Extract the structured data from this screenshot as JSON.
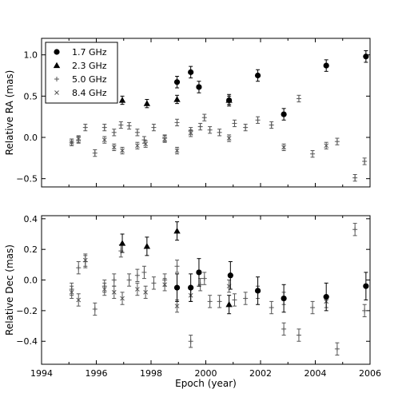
{
  "chart_data": [
    {
      "type": "scatter",
      "panel": "top",
      "xlabel": "",
      "ylabel": "Relative RA (mas)",
      "xlim": [
        1994,
        2006
      ],
      "ylim": [
        -0.6,
        1.2
      ],
      "x_ticks": [
        1994,
        1996,
        1998,
        2000,
        2002,
        2004,
        2006
      ],
      "x_tick_labels_shown": false,
      "y_ticks": [
        -0.5,
        0.0,
        0.5,
        1.0
      ],
      "y_tick_labels": [
        "−0.5",
        "0.0",
        "0.5",
        "1.0"
      ],
      "grid": false,
      "legend": {
        "placement": "top-left"
      },
      "series": [
        {
          "name": "1.7 GHz",
          "marker": "circle",
          "points": [
            {
              "x": 1998.95,
              "y": 0.67,
              "err": 0.07
            },
            {
              "x": 1999.45,
              "y": 0.79,
              "err": 0.07
            },
            {
              "x": 1999.75,
              "y": 0.61,
              "err": 0.07
            },
            {
              "x": 2000.85,
              "y": 0.45,
              "err": 0.07
            },
            {
              "x": 2001.9,
              "y": 0.75,
              "err": 0.07
            },
            {
              "x": 2002.85,
              "y": 0.28,
              "err": 0.07
            },
            {
              "x": 2004.4,
              "y": 0.87,
              "err": 0.07
            },
            {
              "x": 2005.85,
              "y": 0.98,
              "err": 0.07
            }
          ]
        },
        {
          "name": "2.3 GHz",
          "marker": "triangle",
          "points": [
            {
              "x": 1996.95,
              "y": 0.45,
              "err": 0.05
            },
            {
              "x": 1997.85,
              "y": 0.41,
              "err": 0.05
            },
            {
              "x": 1998.95,
              "y": 0.46,
              "err": 0.05
            },
            {
              "x": 2000.85,
              "y": 0.45,
              "err": 0.05
            }
          ]
        },
        {
          "name": "5.0 GHz",
          "marker": "plus",
          "points": [
            {
              "x": 1995.1,
              "y": -0.06
            },
            {
              "x": 1995.35,
              "y": -0.03
            },
            {
              "x": 1995.6,
              "y": 0.12
            },
            {
              "x": 1995.95,
              "y": -0.19
            },
            {
              "x": 1996.3,
              "y": 0.12
            },
            {
              "x": 1996.65,
              "y": 0.06
            },
            {
              "x": 1996.9,
              "y": 0.15
            },
            {
              "x": 1997.2,
              "y": 0.14
            },
            {
              "x": 1997.5,
              "y": 0.06
            },
            {
              "x": 1997.75,
              "y": -0.03
            },
            {
              "x": 1998.1,
              "y": 0.12
            },
            {
              "x": 1998.5,
              "y": -0.01
            },
            {
              "x": 1998.95,
              "y": 0.18
            },
            {
              "x": 1999.45,
              "y": 0.08
            },
            {
              "x": 1999.8,
              "y": 0.13
            },
            {
              "x": 1999.95,
              "y": 0.24
            },
            {
              "x": 2000.15,
              "y": 0.09
            },
            {
              "x": 2000.5,
              "y": 0.06
            },
            {
              "x": 2001.05,
              "y": 0.17
            },
            {
              "x": 2001.45,
              "y": 0.12
            },
            {
              "x": 2001.9,
              "y": 0.21
            },
            {
              "x": 2002.4,
              "y": 0.15
            },
            {
              "x": 2003.4,
              "y": 0.47
            },
            {
              "x": 2003.9,
              "y": -0.2
            },
            {
              "x": 2004.8,
              "y": -0.05
            },
            {
              "x": 2005.45,
              "y": -0.49
            },
            {
              "x": 2005.8,
              "y": -0.29
            }
          ]
        },
        {
          "name": "8.4 GHz",
          "marker": "cross",
          "points": [
            {
              "x": 1995.1,
              "y": -0.06
            },
            {
              "x": 1995.35,
              "y": -0.02
            },
            {
              "x": 1996.3,
              "y": -0.03
            },
            {
              "x": 1996.65,
              "y": -0.12
            },
            {
              "x": 1996.95,
              "y": -0.16
            },
            {
              "x": 1997.5,
              "y": -0.1
            },
            {
              "x": 1997.8,
              "y": -0.08
            },
            {
              "x": 1998.5,
              "y": -0.02
            },
            {
              "x": 1998.95,
              "y": -0.16
            },
            {
              "x": 1999.45,
              "y": 0.05
            },
            {
              "x": 2000.85,
              "y": -0.01
            },
            {
              "x": 2002.85,
              "y": -0.12
            },
            {
              "x": 2004.4,
              "y": -0.1
            }
          ]
        }
      ]
    },
    {
      "type": "scatter",
      "panel": "bottom",
      "xlabel": "Epoch (year)",
      "ylabel": "Relative Dec (mas)",
      "xlim": [
        1994,
        2006
      ],
      "ylim": [
        -0.55,
        0.42
      ],
      "x_ticks": [
        1994,
        1996,
        1998,
        2000,
        2002,
        2004,
        2006
      ],
      "x_tick_labels": [
        "1994",
        "1996",
        "1998",
        "2000",
        "2002",
        "2004",
        "2006"
      ],
      "y_ticks": [
        -0.4,
        -0.2,
        0.0,
        0.2,
        0.4
      ],
      "y_tick_labels": [
        "−0.4",
        "−0.2",
        "0.0",
        "0.2",
        "0.4"
      ],
      "grid": false,
      "series": [
        {
          "name": "1.7 GHz",
          "marker": "circle",
          "points": [
            {
              "x": 1998.95,
              "y": -0.05,
              "err": 0.09
            },
            {
              "x": 1999.45,
              "y": -0.05,
              "err": 0.09
            },
            {
              "x": 1999.75,
              "y": 0.05,
              "err": 0.09
            },
            {
              "x": 2000.9,
              "y": 0.03,
              "err": 0.09
            },
            {
              "x": 2001.9,
              "y": -0.07,
              "err": 0.09
            },
            {
              "x": 2002.85,
              "y": -0.12,
              "err": 0.09
            },
            {
              "x": 2004.4,
              "y": -0.11,
              "err": 0.09
            },
            {
              "x": 2005.85,
              "y": -0.04,
              "err": 0.09
            }
          ]
        },
        {
          "name": "2.3 GHz",
          "marker": "triangle",
          "points": [
            {
              "x": 1996.95,
              "y": 0.24,
              "err": 0.06
            },
            {
              "x": 1997.85,
              "y": 0.22,
              "err": 0.06
            },
            {
              "x": 1998.95,
              "y": 0.32,
              "err": 0.06
            },
            {
              "x": 2000.85,
              "y": -0.16,
              "err": 0.06
            }
          ]
        },
        {
          "name": "5.0 GHz",
          "marker": "plus",
          "points": [
            {
              "x": 1995.1,
              "y": -0.06
            },
            {
              "x": 1995.35,
              "y": 0.08
            },
            {
              "x": 1995.6,
              "y": 0.12
            },
            {
              "x": 1995.95,
              "y": -0.19
            },
            {
              "x": 1996.3,
              "y": -0.04
            },
            {
              "x": 1996.65,
              "y": 0.0
            },
            {
              "x": 1996.9,
              "y": 0.19
            },
            {
              "x": 1997.2,
              "y": 0.0
            },
            {
              "x": 1997.5,
              "y": 0.03
            },
            {
              "x": 1997.75,
              "y": 0.05
            },
            {
              "x": 1998.1,
              "y": -0.02
            },
            {
              "x": 1998.5,
              "y": 0.0
            },
            {
              "x": 1998.95,
              "y": 0.09
            },
            {
              "x": 1999.45,
              "y": -0.4
            },
            {
              "x": 1999.8,
              "y": -0.03
            },
            {
              "x": 1999.95,
              "y": 0.01
            },
            {
              "x": 2000.15,
              "y": -0.14
            },
            {
              "x": 2000.5,
              "y": -0.14
            },
            {
              "x": 2001.05,
              "y": -0.13
            },
            {
              "x": 2001.45,
              "y": -0.12
            },
            {
              "x": 2001.9,
              "y": -0.08
            },
            {
              "x": 2002.4,
              "y": -0.18
            },
            {
              "x": 2002.85,
              "y": -0.32
            },
            {
              "x": 2003.4,
              "y": -0.36
            },
            {
              "x": 2003.9,
              "y": -0.18
            },
            {
              "x": 2004.8,
              "y": -0.45
            },
            {
              "x": 2005.45,
              "y": 0.33
            },
            {
              "x": 2005.8,
              "y": -0.2
            }
          ]
        },
        {
          "name": "8.4 GHz",
          "marker": "cross",
          "points": [
            {
              "x": 1995.1,
              "y": -0.08
            },
            {
              "x": 1995.35,
              "y": -0.13
            },
            {
              "x": 1995.6,
              "y": 0.13
            },
            {
              "x": 1996.3,
              "y": -0.06
            },
            {
              "x": 1996.65,
              "y": -0.08
            },
            {
              "x": 1996.95,
              "y": -0.12
            },
            {
              "x": 1997.5,
              "y": -0.06
            },
            {
              "x": 1997.8,
              "y": -0.08
            },
            {
              "x": 1998.5,
              "y": -0.03
            },
            {
              "x": 1998.95,
              "y": -0.17
            },
            {
              "x": 1999.45,
              "y": -0.1
            },
            {
              "x": 2000.85,
              "y": -0.04
            },
            {
              "x": 2002.85,
              "y": -0.12
            },
            {
              "x": 2004.4,
              "y": -0.14
            }
          ]
        }
      ]
    }
  ]
}
